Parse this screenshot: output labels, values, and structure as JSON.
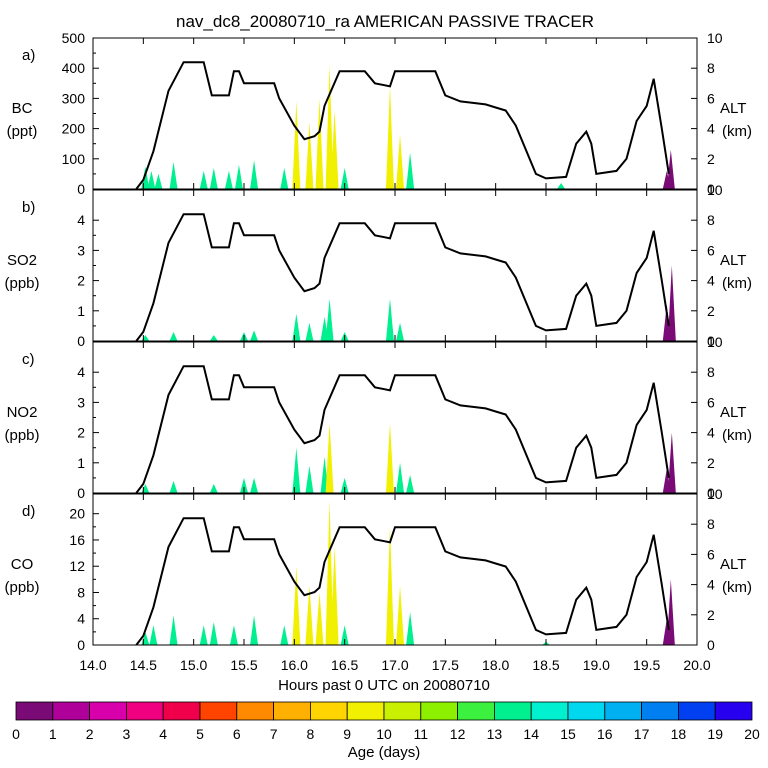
{
  "title": "nav_dc8_20080710_ra AMERICAN PASSIVE TRACER",
  "xaxis": {
    "label": "Hours past 0 UTC on 20080710",
    "range": [
      14.0,
      20.0
    ],
    "ticks": [
      "14.0",
      "14.5",
      "15.0",
      "15.5",
      "16.0",
      "16.5",
      "17.0",
      "17.5",
      "18.0",
      "18.5",
      "19.0",
      "19.5",
      "20.0"
    ]
  },
  "right_axis": {
    "label": "ALT",
    "unit": "(km)",
    "range": [
      0,
      10
    ],
    "ticks": [
      "0",
      "2",
      "4",
      "6",
      "8",
      "10"
    ]
  },
  "colorbar": {
    "label": "Age (days)",
    "ticks": [
      "0",
      "1",
      "2",
      "3",
      "4",
      "5",
      "6",
      "7",
      "8",
      "9",
      "10",
      "11",
      "12",
      "13",
      "14",
      "15",
      "16",
      "17",
      "18",
      "19",
      "20"
    ],
    "colors": [
      "#7a0a76",
      "#b0009a",
      "#d800aa",
      "#f00080",
      "#f0004a",
      "#ff4400",
      "#ff8a00",
      "#ffb000",
      "#ffd400",
      "#f0f000",
      "#c8f000",
      "#8cf000",
      "#3cf040",
      "#00f090",
      "#00f0d0",
      "#00d8f0",
      "#00b0f0",
      "#0080f0",
      "#0040f0",
      "#2800f0",
      "#7000f0"
    ]
  },
  "chart_data": {
    "type": "area",
    "panels": [
      {
        "letter": "a)",
        "species": "BC",
        "unit": "(ppt)",
        "ylim": [
          0,
          500
        ],
        "ticks": [
          "0",
          "100",
          "200",
          "300",
          "400",
          "500"
        ],
        "peaks": [
          [
            14.52,
            75
          ],
          [
            14.58,
            60
          ],
          [
            14.65,
            50
          ],
          [
            14.8,
            90
          ],
          [
            15.1,
            60
          ],
          [
            15.2,
            70
          ],
          [
            15.35,
            60
          ],
          [
            15.45,
            80
          ],
          [
            15.6,
            95
          ],
          [
            15.9,
            70
          ],
          [
            16.02,
            290
          ],
          [
            16.15,
            220
          ],
          [
            16.25,
            300
          ],
          [
            16.35,
            410
          ],
          [
            16.4,
            260
          ],
          [
            16.5,
            70
          ],
          [
            16.95,
            340
          ],
          [
            17.05,
            180
          ],
          [
            17.15,
            120
          ],
          [
            18.65,
            20
          ],
          [
            19.7,
            60
          ],
          [
            19.74,
            130
          ]
        ]
      },
      {
        "letter": "b)",
        "species": "SO2",
        "unit": "(ppb)",
        "ylim": [
          0,
          5
        ],
        "ticks": [
          "0",
          "1",
          "2",
          "3",
          "4"
        ],
        "peaks": [
          [
            14.52,
            0.2
          ],
          [
            14.8,
            0.3
          ],
          [
            15.2,
            0.2
          ],
          [
            15.5,
            0.3
          ],
          [
            15.6,
            0.35
          ],
          [
            16.02,
            0.9
          ],
          [
            16.15,
            0.6
          ],
          [
            16.3,
            0.8
          ],
          [
            16.35,
            1.4
          ],
          [
            16.5,
            0.3
          ],
          [
            16.95,
            1.4
          ],
          [
            17.05,
            0.6
          ],
          [
            19.7,
            1.2
          ],
          [
            19.75,
            2.5
          ]
        ]
      },
      {
        "letter": "c)",
        "species": "NO2",
        "unit": "(ppb)",
        "ylim": [
          0,
          5
        ],
        "ticks": [
          "0",
          "1",
          "2",
          "3",
          "4"
        ],
        "peaks": [
          [
            14.52,
            0.3
          ],
          [
            14.8,
            0.4
          ],
          [
            15.2,
            0.3
          ],
          [
            15.5,
            0.5
          ],
          [
            15.6,
            0.5
          ],
          [
            16.02,
            1.5
          ],
          [
            16.15,
            0.9
          ],
          [
            16.3,
            1.2
          ],
          [
            16.35,
            2.3
          ],
          [
            16.5,
            0.5
          ],
          [
            16.95,
            2.3
          ],
          [
            17.05,
            1.0
          ],
          [
            17.15,
            0.6
          ],
          [
            19.7,
            0.8
          ],
          [
            19.75,
            2.0
          ]
        ]
      },
      {
        "letter": "d)",
        "species": "CO",
        "unit": "(ppb)",
        "ylim": [
          0,
          23
        ],
        "ticks": [
          "0",
          "4",
          "8",
          "12",
          "16",
          "20"
        ],
        "peaks": [
          [
            14.52,
            2
          ],
          [
            14.6,
            3
          ],
          [
            14.8,
            4.5
          ],
          [
            15.1,
            3
          ],
          [
            15.2,
            3.5
          ],
          [
            15.4,
            3
          ],
          [
            15.6,
            4.5
          ],
          [
            15.9,
            3
          ],
          [
            16.02,
            12
          ],
          [
            16.15,
            9
          ],
          [
            16.25,
            8
          ],
          [
            16.35,
            22
          ],
          [
            16.4,
            15
          ],
          [
            16.5,
            3
          ],
          [
            16.95,
            18
          ],
          [
            17.05,
            9
          ],
          [
            17.15,
            5
          ],
          [
            18.5,
            0.5
          ],
          [
            19.7,
            4
          ],
          [
            19.74,
            10
          ]
        ]
      }
    ],
    "altitude_km": [
      [
        14.43,
        0
      ],
      [
        14.5,
        0.6
      ],
      [
        14.6,
        2.5
      ],
      [
        14.75,
        6.5
      ],
      [
        14.9,
        8.4
      ],
      [
        15.1,
        8.4
      ],
      [
        15.18,
        6.2
      ],
      [
        15.35,
        6.2
      ],
      [
        15.4,
        7.8
      ],
      [
        15.45,
        7.8
      ],
      [
        15.5,
        7.0
      ],
      [
        15.8,
        7.0
      ],
      [
        15.85,
        6.0
      ],
      [
        16.0,
        4.2
      ],
      [
        16.1,
        3.3
      ],
      [
        16.2,
        3.5
      ],
      [
        16.25,
        3.8
      ],
      [
        16.3,
        5.5
      ],
      [
        16.45,
        7.8
      ],
      [
        16.7,
        7.8
      ],
      [
        16.8,
        7.0
      ],
      [
        16.95,
        6.8
      ],
      [
        17.0,
        7.8
      ],
      [
        17.4,
        7.8
      ],
      [
        17.5,
        6.2
      ],
      [
        17.65,
        5.8
      ],
      [
        17.9,
        5.6
      ],
      [
        18.0,
        5.4
      ],
      [
        18.1,
        5.2
      ],
      [
        18.2,
        4.2
      ],
      [
        18.4,
        1.0
      ],
      [
        18.5,
        0.7
      ],
      [
        18.7,
        0.8
      ],
      [
        18.8,
        3.0
      ],
      [
        18.9,
        3.8
      ],
      [
        18.95,
        3.0
      ],
      [
        19.0,
        1.0
      ],
      [
        19.2,
        1.2
      ],
      [
        19.3,
        2.0
      ],
      [
        19.4,
        4.5
      ],
      [
        19.5,
        5.5
      ],
      [
        19.57,
        7.3
      ],
      [
        19.65,
        4.0
      ],
      [
        19.72,
        1.0
      ]
    ]
  }
}
